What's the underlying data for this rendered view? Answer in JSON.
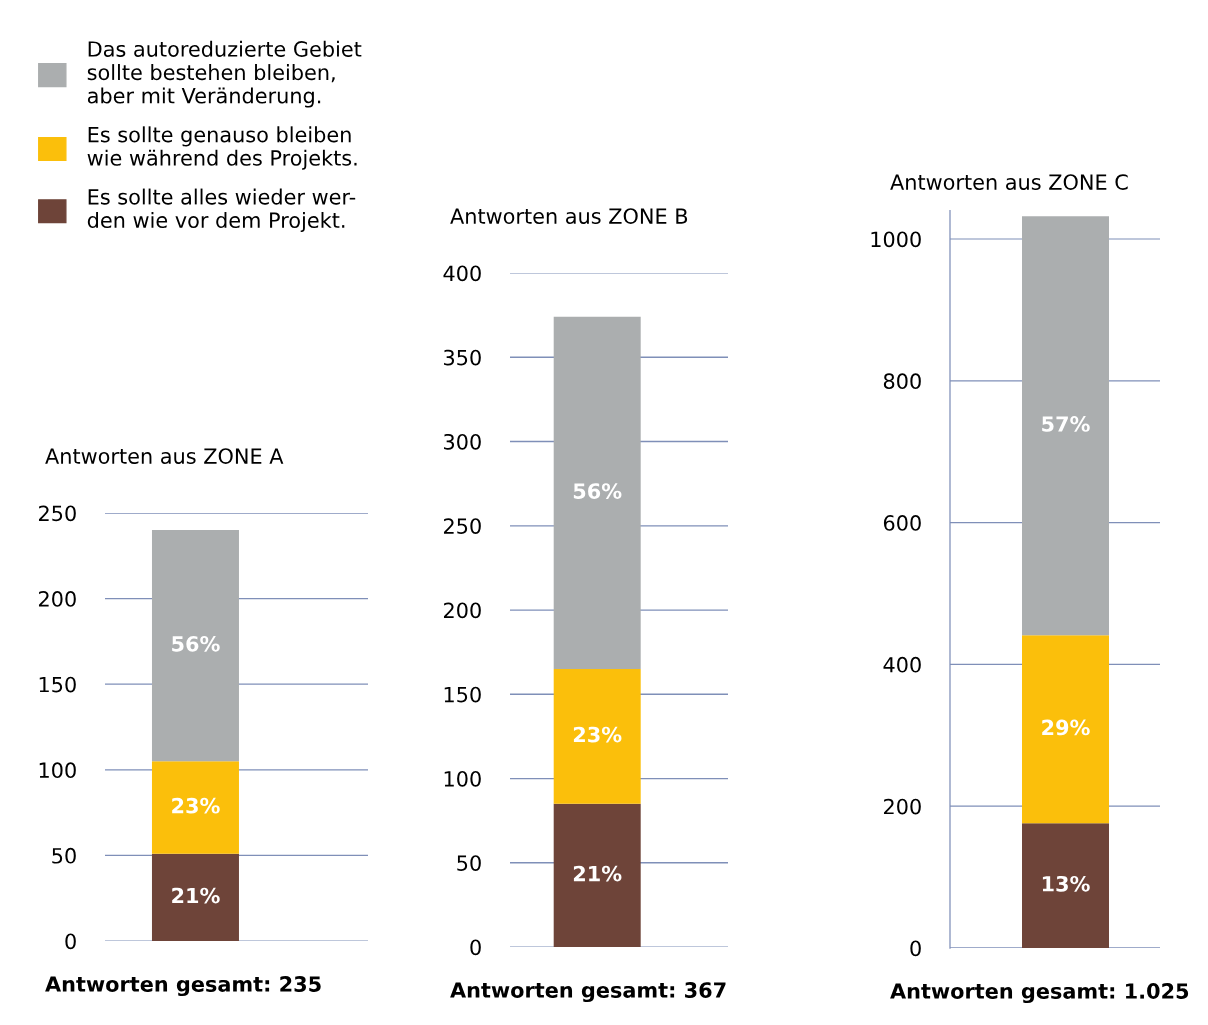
{
  "chart_data": [
    {
      "type": "bar",
      "stacked": true,
      "title": "Antworten aus ZONE A",
      "xlabel": "Antworten gesamt: 235",
      "categories": [
        null
      ],
      "ylim": [
        0,
        250
      ],
      "yticks": [
        0,
        50,
        100,
        150,
        200,
        250
      ],
      "grid": "y",
      "tick_labels": "y",
      "legend": "top left",
      "series": [
        {
          "name": "Es sollte alles wieder wer-\nden wie vor dem Projekt.",
          "color": "#6e4439",
          "values": [
            51
          ]
        },
        {
          "name": "Es sollte genauso bleiben\nwie während des Projekts.",
          "color": "#fbbf0b",
          "values": [
            54
          ]
        },
        {
          "name": "Das autoreduzierte Gebiet\nsollte bestehen bleiben,\naber mit Veränderung.",
          "color": "#abaeaf",
          "values": [
            135
          ]
        }
      ],
      "annotations": [
        "21%",
        "23%",
        "56%"
      ]
    },
    {
      "type": "bar",
      "stacked": true,
      "title": "Antworten aus ZONE B",
      "xlabel": "Antworten gesamt: 367",
      "categories": [
        null
      ],
      "ylim": [
        0,
        400
      ],
      "yticks": [
        0,
        50,
        100,
        150,
        200,
        250,
        300,
        350,
        400
      ],
      "grid": "y",
      "tick_labels": "y",
      "series": [
        {
          "color": "#6e4439",
          "values": [
            85
          ]
        },
        {
          "color": "#fbbf0b",
          "values": [
            80
          ]
        },
        {
          "color": "#abaeaf",
          "values": [
            209
          ]
        }
      ],
      "annotations": [
        "21%",
        "23%",
        "56%"
      ]
    },
    {
      "type": "bar",
      "stacked": true,
      "title": "Antworten aus ZONE C",
      "xlabel": "Antworten gesamt: 1.025",
      "categories": [
        null
      ],
      "ylim": [
        0,
        1040
      ],
      "yticks": [
        0,
        200,
        400,
        600,
        800,
        1000
      ],
      "grid": "y",
      "tick_labels": "y",
      "series": [
        {
          "color": "#6e4439",
          "values": [
            176
          ]
        },
        {
          "color": "#fbbf0b",
          "values": [
            265
          ]
        },
        {
          "color": "#abaeaf",
          "values": [
            591
          ]
        }
      ],
      "annotations": [
        "13%",
        "29%",
        "57%"
      ]
    }
  ]
}
